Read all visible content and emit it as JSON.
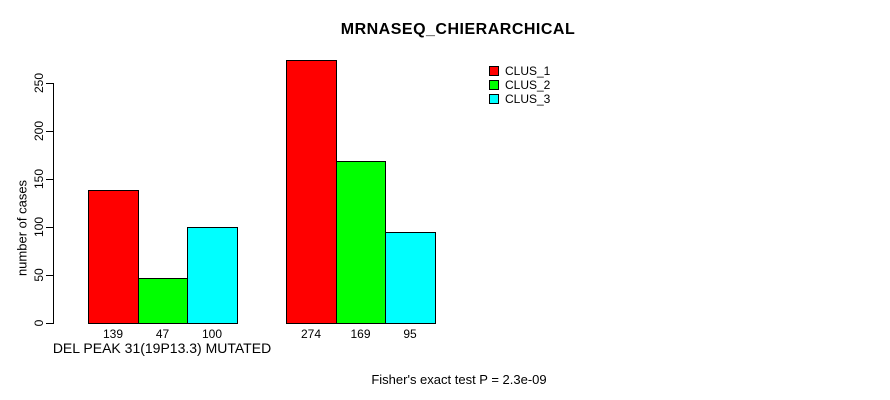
{
  "chart_data": {
    "type": "bar",
    "title": "MRNASEQ_CHIERARCHICAL",
    "ylabel": "number of cases",
    "xlabel": "",
    "ylim": [
      0,
      250
    ],
    "yticks": [
      0,
      50,
      100,
      150,
      200,
      250
    ],
    "grid": false,
    "background_color": "#ffffff",
    "bar_border_color": "#000000",
    "axis_color": "#000000",
    "text_color": "#000000",
    "categories": [
      "DEL PEAK 31(19P13.3) MUTATED",
      ""
    ],
    "series": [
      {
        "name": "CLUS_1",
        "color": "#ff0000",
        "values": [
          139,
          274
        ]
      },
      {
        "name": "CLUS_2",
        "color": "#00ff00",
        "values": [
          47,
          169
        ]
      },
      {
        "name": "CLUS_3",
        "color": "#00ffff",
        "values": [
          100,
          95
        ]
      }
    ],
    "bar_value_labels": [
      [
        139,
        47,
        100
      ],
      [
        274,
        169,
        95
      ]
    ],
    "legend": {
      "position": "top-right"
    },
    "annotation": "Fisher's exact test P = 2.3e-09"
  }
}
